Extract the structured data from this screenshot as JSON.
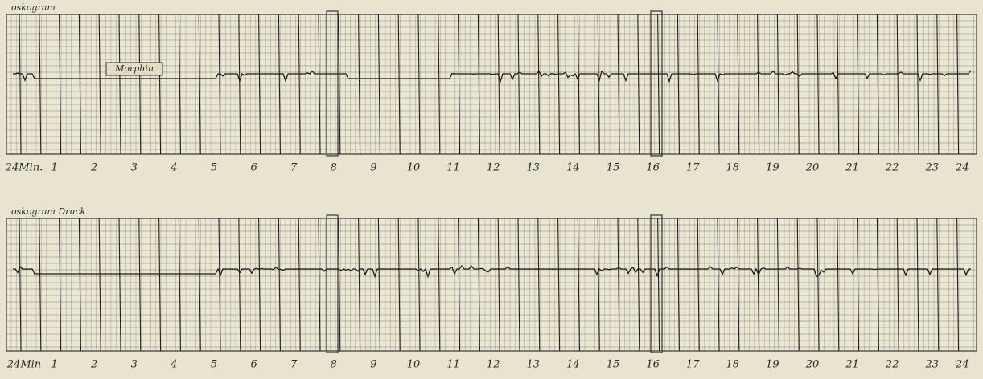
{
  "strips": [
    {
      "title": "oskogram",
      "annotation": "Morphin",
      "time_labels": [
        "24Min.",
        "1",
        "2",
        "3",
        "4",
        "5",
        "6",
        "7",
        "8",
        "9",
        "10",
        "11",
        "12",
        "13",
        "14",
        "15",
        "16",
        "17",
        "18",
        "19",
        "20",
        "21",
        "22",
        "23",
        "24"
      ]
    },
    {
      "title": "oskogram Druck",
      "time_labels": [
        "24Min",
        "1",
        "2",
        "3",
        "4",
        "5",
        "6",
        "7",
        "8",
        "9",
        "10",
        "11",
        "12",
        "13",
        "14",
        "15",
        "16",
        "17",
        "18",
        "19",
        "20",
        "21",
        "22",
        "23",
        "24"
      ]
    }
  ]
}
